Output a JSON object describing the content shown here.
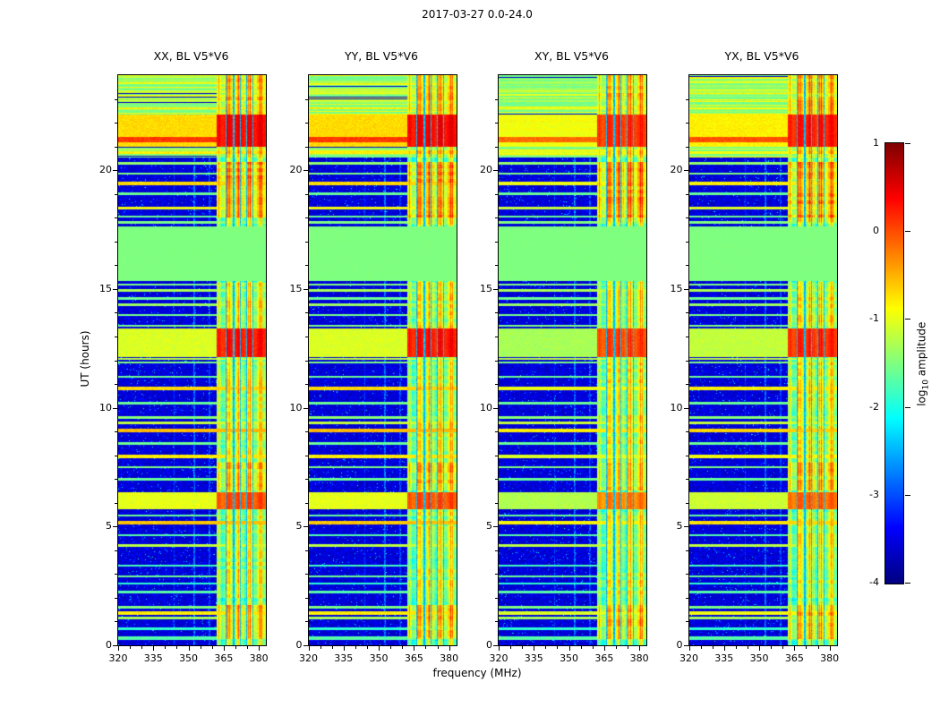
{
  "chart_data": {
    "type": "heatmap",
    "title": "2017-03-27 0.0-24.0",
    "xlabel": "frequency (MHz)",
    "ylabel": "UT (hours)",
    "x_range": [
      320,
      383
    ],
    "y_range": [
      0,
      24
    ],
    "x_ticks": [
      320,
      335,
      350,
      365,
      380
    ],
    "x_minor_tick_step": 5,
    "y_ticks": [
      0,
      5,
      10,
      15,
      20
    ],
    "y_minor_tick_step": 1,
    "colormap": "jet",
    "colorbar": {
      "label_prefix": "log",
      "label_sub": "10",
      "label_suffix": " amplitude",
      "ticks": [
        1,
        0,
        -1,
        -2,
        -3,
        -4
      ],
      "range": [
        -4,
        1
      ]
    },
    "panels": [
      {
        "id": "xx",
        "label": "XX, BL V5*V6"
      },
      {
        "id": "yy",
        "label": "YY, BL V5*V6"
      },
      {
        "id": "xy",
        "label": "XY, BL V5*V6"
      },
      {
        "id": "yx",
        "label": "YX, BL V5*V6"
      }
    ],
    "features": {
      "background_level": -3.55,
      "noise_amplitude": 0.55,
      "rfi_band": {
        "freq_start": 362.0,
        "freq_end": 383.0,
        "base_level": -1.4,
        "gaps": [
          366.0,
          369.2,
          372.0,
          374.8,
          377.5
        ]
      },
      "vertical_faint_lines": [
        {
          "freq": 352.6,
          "width": 0.35,
          "boost": 1.0
        },
        {
          "freq": 343.8,
          "width": 0.25,
          "boost": 0.6
        },
        {
          "freq": 358.9,
          "width": 0.3,
          "boost": 0.7
        }
      ],
      "flat_green_block": {
        "t_start": 15.35,
        "t_end": 17.65,
        "level": -1.5
      },
      "top_striped_band": {
        "t_start": 20.55,
        "t_end": 24.0,
        "base_level": -1.55
      },
      "bright_bands": [
        {
          "t_start": 5.72,
          "t_end": 6.45,
          "level": -1.0,
          "rfi_level": 0.0
        },
        {
          "t_start": 12.15,
          "t_end": 13.35,
          "level": -1.05,
          "rfi_level": 0.3
        },
        {
          "t_start": 21.0,
          "t_end": 22.35,
          "level": -0.7,
          "rfi_level": 0.4
        }
      ],
      "rfi_active_periods": [
        {
          "t_start": 0.25,
          "t_end": 1.7,
          "boost": 0.6
        },
        {
          "t_start": 2.0,
          "t_end": 5.6,
          "boost": 0.25
        },
        {
          "t_start": 6.5,
          "t_end": 7.7,
          "boost": 0.6
        },
        {
          "t_start": 7.7,
          "t_end": 11.9,
          "boost": 0.3
        },
        {
          "t_start": 13.35,
          "t_end": 15.3,
          "boost": 0.35
        },
        {
          "t_start": 17.7,
          "t_end": 18.0,
          "boost": 0.3
        },
        {
          "t_start": 18.0,
          "t_end": 20.35,
          "boost": 0.85
        },
        {
          "t_start": 20.55,
          "t_end": 21.0,
          "boost": 0.5
        },
        {
          "t_start": 22.35,
          "t_end": 24.0,
          "boost": 0.65
        }
      ],
      "horizontal_lines": [
        {
          "t": 0.3,
          "w": 0.06,
          "level": -1.7
        },
        {
          "t": 0.7,
          "w": 0.05,
          "level": -1.9
        },
        {
          "t": 1.15,
          "w": 0.06,
          "level": -1.3
        },
        {
          "t": 1.35,
          "w": 0.08,
          "level": -0.8
        },
        {
          "t": 1.6,
          "w": 0.05,
          "level": -1.5
        },
        {
          "t": 2.25,
          "w": 0.05,
          "level": -1.7
        },
        {
          "t": 2.6,
          "w": 0.04,
          "level": -1.9
        },
        {
          "t": 2.9,
          "w": 0.05,
          "level": -1.6
        },
        {
          "t": 3.35,
          "w": 0.04,
          "level": -1.8
        },
        {
          "t": 4.2,
          "w": 0.07,
          "level": -1.2
        },
        {
          "t": 4.65,
          "w": 0.04,
          "level": -1.7
        },
        {
          "t": 5.15,
          "w": 0.07,
          "level": -0.6
        },
        {
          "t": 5.45,
          "w": 0.04,
          "level": -1.6
        },
        {
          "t": 7.0,
          "w": 0.05,
          "level": -1.6
        },
        {
          "t": 7.5,
          "w": 0.05,
          "level": -1.5
        },
        {
          "t": 7.95,
          "w": 0.07,
          "level": -0.8
        },
        {
          "t": 8.5,
          "w": 0.05,
          "level": -1.6
        },
        {
          "t": 9.05,
          "w": 0.08,
          "level": -0.55
        },
        {
          "t": 9.35,
          "w": 0.06,
          "level": -1.15
        },
        {
          "t": 9.6,
          "w": 0.05,
          "level": -1.45
        },
        {
          "t": 10.2,
          "w": 0.05,
          "level": -1.6
        },
        {
          "t": 10.8,
          "w": 0.07,
          "level": -0.7
        },
        {
          "t": 11.3,
          "w": 0.05,
          "level": -1.6
        },
        {
          "t": 11.9,
          "w": 0.05,
          "level": -1.5
        },
        {
          "t": 12.05,
          "w": 0.05,
          "level": -1.2
        },
        {
          "t": 13.45,
          "w": 0.04,
          "level": -1.5
        },
        {
          "t": 13.9,
          "w": 0.05,
          "level": -1.55
        },
        {
          "t": 14.35,
          "w": 0.06,
          "level": -1.35
        },
        {
          "t": 14.6,
          "w": 0.05,
          "level": -1.6
        },
        {
          "t": 14.95,
          "w": 0.06,
          "level": -1.3
        },
        {
          "t": 15.2,
          "w": 0.04,
          "level": -1.5
        },
        {
          "t": 17.8,
          "w": 0.05,
          "level": -1.5
        },
        {
          "t": 18.05,
          "w": 0.04,
          "level": -1.6
        },
        {
          "t": 18.4,
          "w": 0.07,
          "level": -0.9
        },
        {
          "t": 19.0,
          "w": 0.05,
          "level": -1.6
        },
        {
          "t": 19.45,
          "w": 0.07,
          "level": -0.7
        },
        {
          "t": 19.85,
          "w": 0.05,
          "level": -1.5
        },
        {
          "t": 20.3,
          "w": 0.06,
          "level": -1.4
        },
        {
          "t": 20.75,
          "w": 0.05,
          "level": -0.8
        },
        {
          "t": 21.28,
          "w": 0.12,
          "level": 0.1
        },
        {
          "t": 22.6,
          "w": 0.05,
          "level": -0.8
        },
        {
          "t": 22.9,
          "w": 0.04,
          "level": -1.3
        },
        {
          "t": 23.3,
          "w": 0.05,
          "level": -1.1
        },
        {
          "t": 23.7,
          "w": 0.04,
          "level": -1.3
        }
      ],
      "panel_intensity_offsets": [
        0,
        0,
        -0.25,
        -0.12
      ]
    }
  }
}
